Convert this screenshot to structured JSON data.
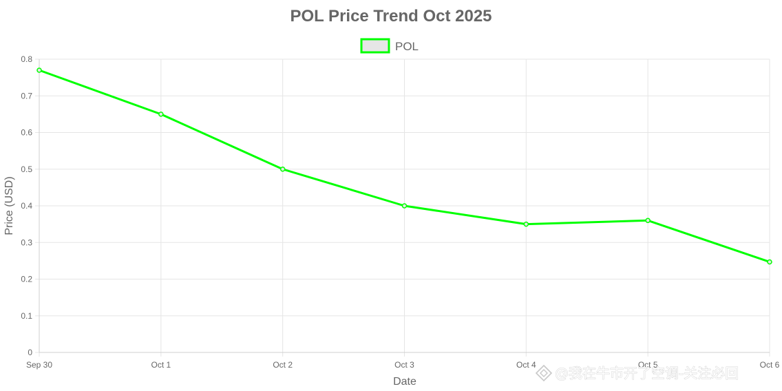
{
  "chart_data": {
    "type": "line",
    "title": "POL Price Trend Oct 2025",
    "xlabel": "Date",
    "ylabel": "Price (USD)",
    "categories": [
      "Sep 30",
      "Oct 1",
      "Oct 2",
      "Oct 3",
      "Oct 4",
      "Oct 5",
      "Oct 6"
    ],
    "series": [
      {
        "name": "POL",
        "values": [
          0.77,
          0.65,
          0.5,
          0.4,
          0.35,
          0.36,
          0.247
        ],
        "color": "#00ff00"
      }
    ],
    "ylim": [
      0,
      0.8
    ],
    "yticks": [
      "0",
      "0.1",
      "0.2",
      "0.3",
      "0.4",
      "0.5",
      "0.6",
      "0.7",
      "0.8"
    ],
    "grid": true,
    "legend_position": "top-center"
  },
  "watermark": {
    "text": "@我在牛市开了空调-关注必回",
    "icon": "diamond-logo-icon"
  }
}
